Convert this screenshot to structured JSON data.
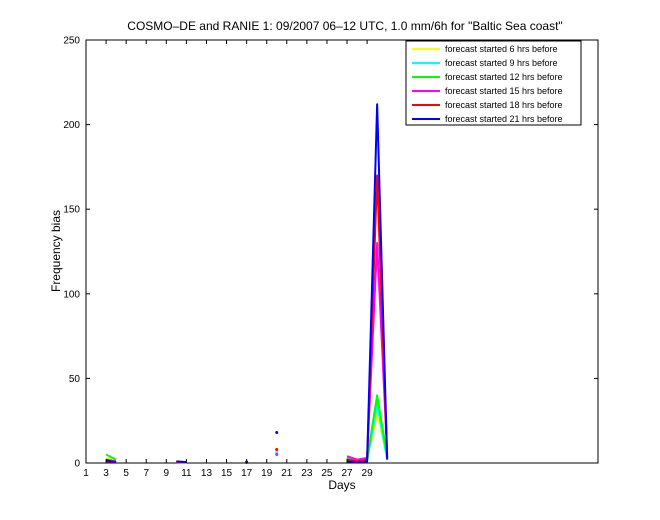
{
  "chart_data": {
    "type": "line",
    "title": "COSMO–DE and RANIE 1: 09/2007 06–12 UTC, 1.0 mm/6h for \"Baltic Sea coast\"",
    "xlabel": "Days",
    "ylabel": "Frequency bias",
    "xlim": [
      1,
      52
    ],
    "ylim": [
      0,
      250
    ],
    "xticks": [
      1,
      3,
      5,
      7,
      9,
      11,
      13,
      15,
      17,
      19,
      21,
      23,
      25,
      27,
      29
    ],
    "yticks": [
      0,
      50,
      100,
      150,
      200,
      250
    ],
    "legend_position": "top-right",
    "grid": false,
    "series": [
      {
        "name": "forecast started 6 hrs before",
        "color": "#ffff00",
        "points": [
          [
            3,
            3
          ],
          [
            4,
            1
          ],
          [
            10,
            0.8
          ],
          [
            11,
            0.5
          ],
          [
            17,
            0.4
          ],
          [
            20,
            7
          ],
          [
            27,
            2
          ],
          [
            28,
            1
          ],
          [
            29,
            1.5
          ],
          [
            30,
            30
          ],
          [
            31,
            3
          ]
        ]
      },
      {
        "name": "forecast started 9 hrs before",
        "color": "#00ffff",
        "points": [
          [
            3,
            2
          ],
          [
            4,
            0.5
          ],
          [
            10,
            0.6
          ],
          [
            11,
            0.4
          ],
          [
            17,
            0.3
          ],
          [
            20,
            6
          ],
          [
            27,
            1.5
          ],
          [
            28,
            0.8
          ],
          [
            29,
            1
          ],
          [
            30,
            35
          ],
          [
            31,
            2
          ]
        ]
      },
      {
        "name": "forecast started 12 hrs before",
        "color": "#00ff00",
        "points": [
          [
            3,
            5
          ],
          [
            4,
            2
          ],
          [
            10,
            0.8
          ],
          [
            11,
            0.5
          ],
          [
            17,
            0.4
          ],
          [
            20,
            8
          ],
          [
            27,
            3
          ],
          [
            28,
            1
          ],
          [
            29,
            2
          ],
          [
            30,
            40
          ],
          [
            31,
            4
          ]
        ]
      },
      {
        "name": "forecast started 15 hrs before",
        "color": "#ff00ff",
        "points": [
          [
            3,
            2
          ],
          [
            4,
            1
          ],
          [
            10,
            0.6
          ],
          [
            11,
            0.4
          ],
          [
            17,
            0.3
          ],
          [
            20,
            5
          ],
          [
            27,
            4
          ],
          [
            28,
            2
          ],
          [
            29,
            3
          ],
          [
            30,
            130
          ],
          [
            31,
            5
          ]
        ]
      },
      {
        "name": "forecast started 18 hrs before",
        "color": "#ff0000",
        "points": [
          [
            3,
            1
          ],
          [
            4,
            0.5
          ],
          [
            10,
            0.5
          ],
          [
            11,
            0.3
          ],
          [
            17,
            0.3
          ],
          [
            20,
            8
          ],
          [
            27,
            2
          ],
          [
            28,
            1
          ],
          [
            29,
            2
          ],
          [
            30,
            170
          ],
          [
            31,
            3
          ]
        ]
      },
      {
        "name": "forecast started 21 hrs before",
        "color": "#0000ff",
        "points": [
          [
            3,
            1.5
          ],
          [
            4,
            0.5
          ],
          [
            10,
            1
          ],
          [
            11,
            0.5
          ],
          [
            17,
            0.5
          ],
          [
            20,
            18
          ],
          [
            27,
            1
          ],
          [
            28,
            0.5
          ],
          [
            29,
            1
          ],
          [
            30,
            212
          ],
          [
            31,
            2
          ]
        ]
      }
    ]
  }
}
